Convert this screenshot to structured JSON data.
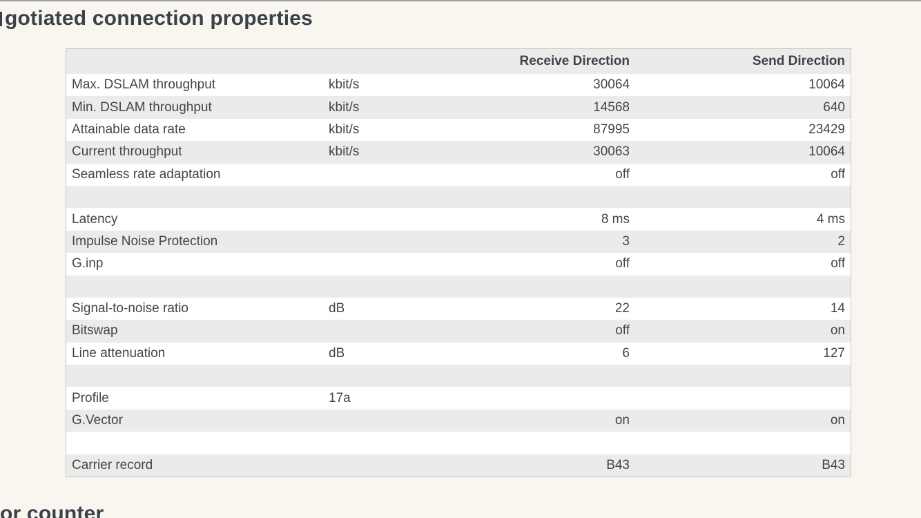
{
  "page": {
    "title_visible": "gotiated connection properties",
    "bottom_heading_visible": "or counter"
  },
  "colors": {
    "page_background": "#f8f6ef",
    "stripe_grey": "#ebebeb",
    "table_border": "#c7c6c1",
    "heading_text": "#3a4149",
    "cell_text": "#454545",
    "top_line": "#9d9d9d"
  },
  "table": {
    "headers": {
      "label": "",
      "unit": "",
      "receive": "Receive Direction",
      "send": "Send Direction"
    },
    "rows": [
      {
        "label": "Max. DSLAM throughput",
        "unit": "kbit/s",
        "receive": "30064",
        "send": "10064"
      },
      {
        "label": "Min. DSLAM throughput",
        "unit": "kbit/s",
        "receive": "14568",
        "send": "640"
      },
      {
        "label": "Attainable data rate",
        "unit": "kbit/s",
        "receive": "87995",
        "send": "23429"
      },
      {
        "label": "Current throughput",
        "unit": "kbit/s",
        "receive": "30063",
        "send": "10064"
      },
      {
        "label": "Seamless rate adaptation",
        "unit": "",
        "receive": "off",
        "send": "off"
      },
      {
        "label": "",
        "unit": "",
        "receive": "",
        "send": ""
      },
      {
        "label": "Latency",
        "unit": "",
        "receive": "8 ms",
        "send": "4 ms"
      },
      {
        "label": "Impulse Noise Protection",
        "unit": "",
        "receive": "3",
        "send": "2"
      },
      {
        "label": "G.inp",
        "unit": "",
        "receive": "off",
        "send": "off"
      },
      {
        "label": "",
        "unit": "",
        "receive": "",
        "send": ""
      },
      {
        "label": "Signal-to-noise ratio",
        "unit": "dB",
        "receive": "22",
        "send": "14"
      },
      {
        "label": "Bitswap",
        "unit": "",
        "receive": "off",
        "send": "on"
      },
      {
        "label": "Line attenuation",
        "unit": "dB",
        "receive": "6",
        "send": "127"
      },
      {
        "label": "",
        "unit": "",
        "receive": "",
        "send": ""
      },
      {
        "label": "Profile",
        "unit": "17a",
        "receive": "",
        "send": ""
      },
      {
        "label": "G.Vector",
        "unit": "",
        "receive": "on",
        "send": "on"
      },
      {
        "label": "",
        "unit": "",
        "receive": "",
        "send": ""
      },
      {
        "label": "Carrier record",
        "unit": "",
        "receive": "B43",
        "send": "B43"
      }
    ]
  }
}
